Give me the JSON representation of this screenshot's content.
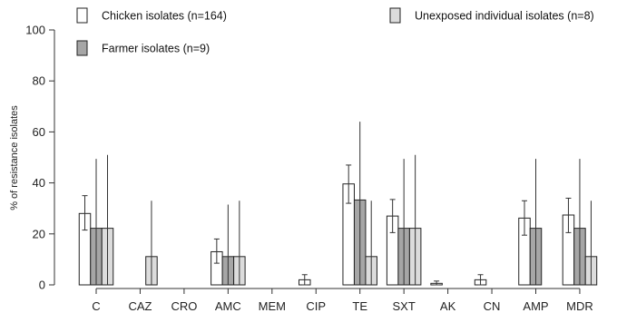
{
  "chart_data": {
    "type": "bar",
    "title": "",
    "xlabel": "",
    "ylabel": "% of resistance isolates",
    "ylim": [
      0,
      100
    ],
    "yticks": [
      0,
      20,
      40,
      60,
      80,
      100
    ],
    "grid": false,
    "legend_position": "top",
    "categories": [
      "C",
      "CAZ",
      "CRO",
      "AMC",
      "MEM",
      "CIP",
      "TE",
      "SXT",
      "AK",
      "CN",
      "AMP",
      "MDR"
    ],
    "series": [
      {
        "name": "Chicken isolates (n=164)",
        "color": "#ffffff",
        "values": [
          28,
          0,
          0,
          13,
          0,
          2,
          39.6,
          27,
          0.6,
          2,
          26.2,
          27.4
        ],
        "err_low": [
          21.5,
          0,
          0,
          8.5,
          0,
          0,
          32,
          20.5,
          0,
          0,
          19.5,
          20.5
        ],
        "err_high": [
          35,
          0,
          0,
          18,
          0,
          4,
          47,
          33.5,
          1.5,
          4,
          33,
          34
        ]
      },
      {
        "name": "Farmer isolates (n=9)",
        "color": "#a6a6a6",
        "values": [
          22.2,
          0,
          0,
          11.1,
          0,
          0,
          33.3,
          22.2,
          0,
          0,
          22.2,
          22.2
        ],
        "err_low": [
          0,
          0,
          0,
          0,
          0,
          0,
          0,
          0,
          0,
          0,
          0,
          0
        ],
        "err_high": [
          49.4,
          0,
          0,
          31.5,
          0,
          0,
          64,
          49.4,
          0,
          0,
          49.4,
          49.4
        ]
      },
      {
        "name": "Unexposed individual isolates (n=8)",
        "color": "#dcdcdc",
        "values": [
          22.2,
          11.1,
          0,
          11.1,
          0,
          0,
          11.1,
          22.2,
          0,
          0,
          0,
          11.1
        ],
        "err_low": [
          0,
          0,
          0,
          0,
          0,
          0,
          0,
          0,
          0,
          0,
          0,
          0
        ],
        "err_high": [
          51,
          33,
          0,
          33,
          0,
          0,
          33,
          51,
          0,
          0,
          0,
          33
        ]
      }
    ]
  }
}
